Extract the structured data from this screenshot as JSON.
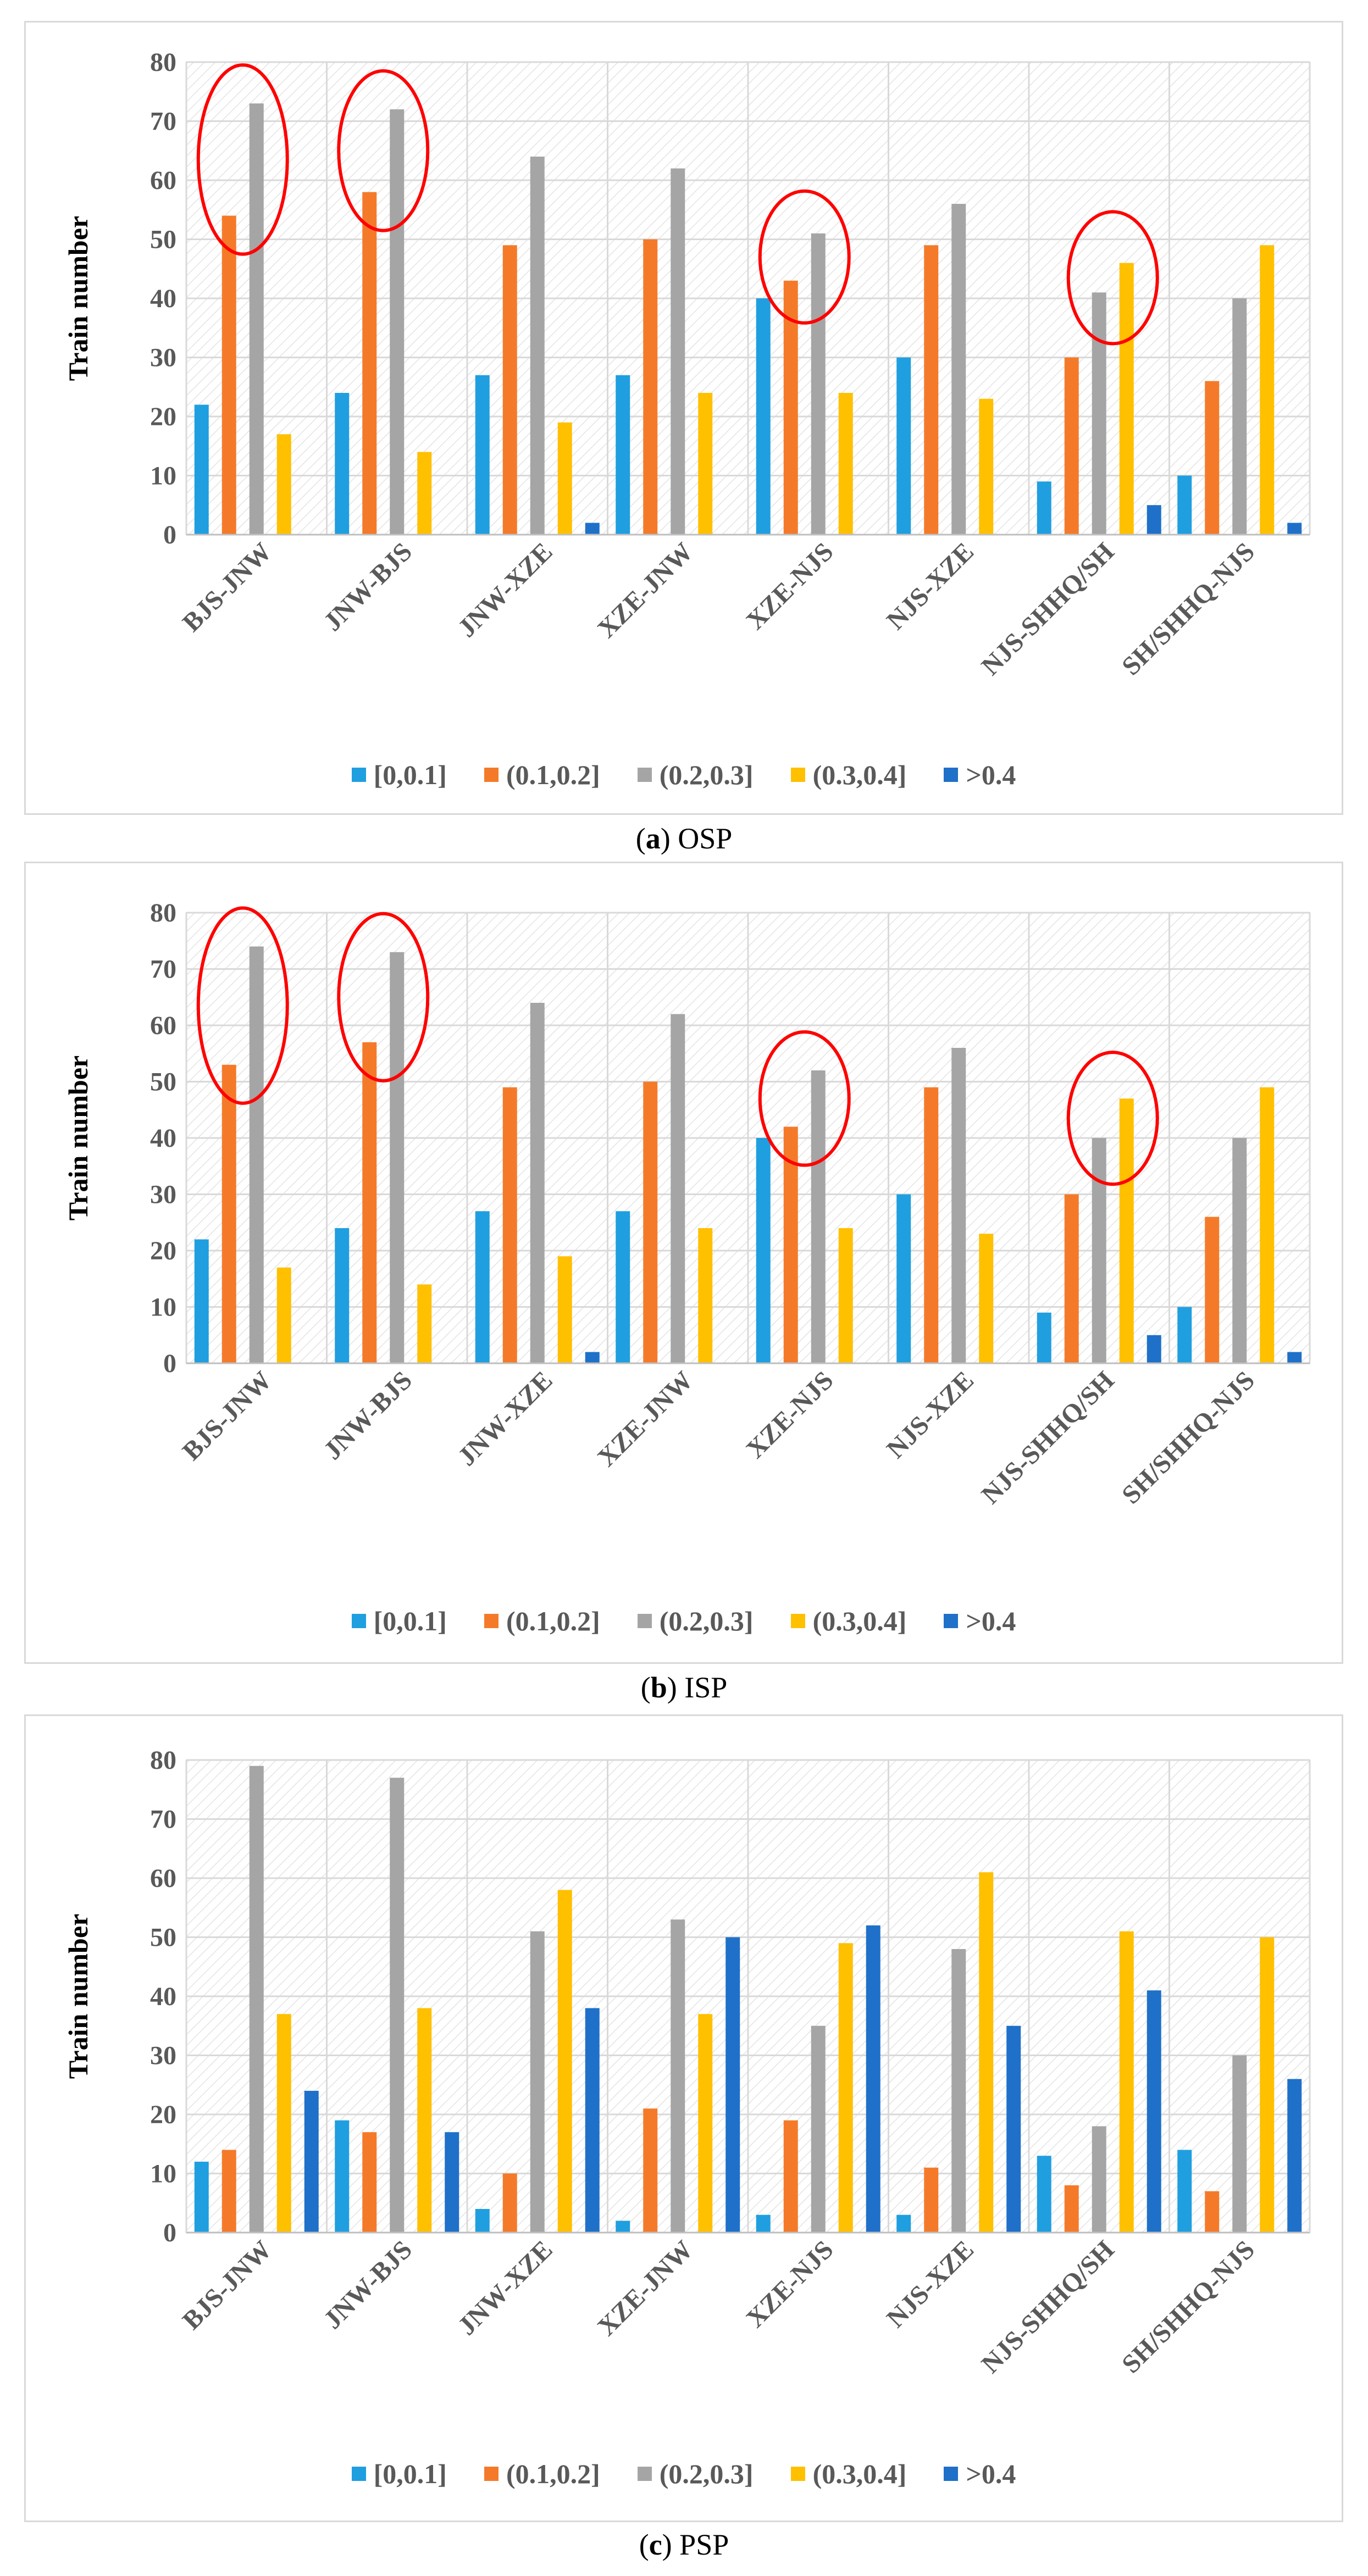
{
  "chart_data": [
    {
      "type": "bar",
      "id": "osp",
      "caption": {
        "letter": "a",
        "name": "OSP"
      },
      "ylabel": "Train number",
      "ylim": [
        0,
        80
      ],
      "yticks": [
        0,
        10,
        20,
        30,
        40,
        50,
        60,
        70,
        80
      ],
      "categories": [
        "BJS-JNW",
        "JNW-BJS",
        "JNW-XZE",
        "XZE-JNW",
        "XZE-NJS",
        "NJS-XZE",
        "NJS-SHHQ/SH",
        "SH/SHHQ-NJS"
      ],
      "series": [
        {
          "name": "[0,0.1]",
          "values": [
            22,
            24,
            27,
            27,
            40,
            30,
            9,
            10
          ]
        },
        {
          "name": "(0.1,0.2]",
          "values": [
            54,
            58,
            49,
            50,
            43,
            49,
            30,
            26
          ]
        },
        {
          "name": "(0.2,0.3]",
          "values": [
            73,
            72,
            64,
            62,
            51,
            56,
            41,
            40
          ]
        },
        {
          "name": "(0.3,0.4]",
          "values": [
            17,
            14,
            19,
            24,
            24,
            23,
            46,
            49
          ]
        },
        {
          "name": ">0.4",
          "values": [
            0,
            0,
            2,
            0,
            0,
            0,
            5,
            2
          ]
        }
      ],
      "highlights": [
        {
          "category": 0,
          "series": [
            1,
            2
          ]
        },
        {
          "category": 1,
          "series": [
            1,
            2
          ]
        },
        {
          "category": 4,
          "series": [
            1,
            2
          ]
        },
        {
          "category": 6,
          "series": [
            2,
            3
          ]
        }
      ]
    },
    {
      "type": "bar",
      "id": "isp",
      "caption": {
        "letter": "b",
        "name": "ISP"
      },
      "ylabel": "Train number",
      "ylim": [
        0,
        80
      ],
      "yticks": [
        0,
        10,
        20,
        30,
        40,
        50,
        60,
        70,
        80
      ],
      "categories": [
        "BJS-JNW",
        "JNW-BJS",
        "JNW-XZE",
        "XZE-JNW",
        "XZE-NJS",
        "NJS-XZE",
        "NJS-SHHQ/SH",
        "SH/SHHQ-NJS"
      ],
      "series": [
        {
          "name": "[0,0.1]",
          "values": [
            22,
            24,
            27,
            27,
            40,
            30,
            9,
            10
          ]
        },
        {
          "name": "(0.1,0.2]",
          "values": [
            53,
            57,
            49,
            50,
            42,
            49,
            30,
            26
          ]
        },
        {
          "name": "(0.2,0.3]",
          "values": [
            74,
            73,
            64,
            62,
            52,
            56,
            40,
            40
          ]
        },
        {
          "name": "(0.3,0.4]",
          "values": [
            17,
            14,
            19,
            24,
            24,
            23,
            47,
            49
          ]
        },
        {
          "name": ">0.4",
          "values": [
            0,
            0,
            2,
            0,
            0,
            0,
            5,
            2
          ]
        }
      ],
      "highlights": [
        {
          "category": 0,
          "series": [
            1,
            2
          ]
        },
        {
          "category": 1,
          "series": [
            1,
            2
          ]
        },
        {
          "category": 4,
          "series": [
            1,
            2
          ]
        },
        {
          "category": 6,
          "series": [
            2,
            3
          ]
        }
      ]
    },
    {
      "type": "bar",
      "id": "psp",
      "caption": {
        "letter": "c",
        "name": "PSP"
      },
      "ylabel": "Train number",
      "ylim": [
        0,
        80
      ],
      "yticks": [
        0,
        10,
        20,
        30,
        40,
        50,
        60,
        70,
        80
      ],
      "categories": [
        "BJS-JNW",
        "JNW-BJS",
        "JNW-XZE",
        "XZE-JNW",
        "XZE-NJS",
        "NJS-XZE",
        "NJS-SHHQ/SH",
        "SH/SHHQ-NJS"
      ],
      "series": [
        {
          "name": "[0,0.1]",
          "values": [
            12,
            19,
            4,
            2,
            3,
            3,
            13,
            14
          ]
        },
        {
          "name": "(0.1,0.2]",
          "values": [
            14,
            17,
            10,
            21,
            19,
            11,
            8,
            7
          ]
        },
        {
          "name": "(0.2,0.3]",
          "values": [
            79,
            77,
            51,
            53,
            35,
            48,
            18,
            30
          ]
        },
        {
          "name": "(0.3,0.4]",
          "values": [
            37,
            38,
            58,
            37,
            49,
            61,
            51,
            50
          ]
        },
        {
          "name": ">0.4",
          "values": [
            24,
            17,
            38,
            50,
            52,
            35,
            41,
            26
          ]
        }
      ],
      "highlights": []
    }
  ],
  "colors": {
    "series": [
      "#1f9fe0",
      "#f47a2a",
      "#a5a5a5",
      "#ffc000",
      "#1f70c9"
    ],
    "highlight": "#ff0000",
    "axis_text": "#595959",
    "grid": "#d9d9d9"
  }
}
